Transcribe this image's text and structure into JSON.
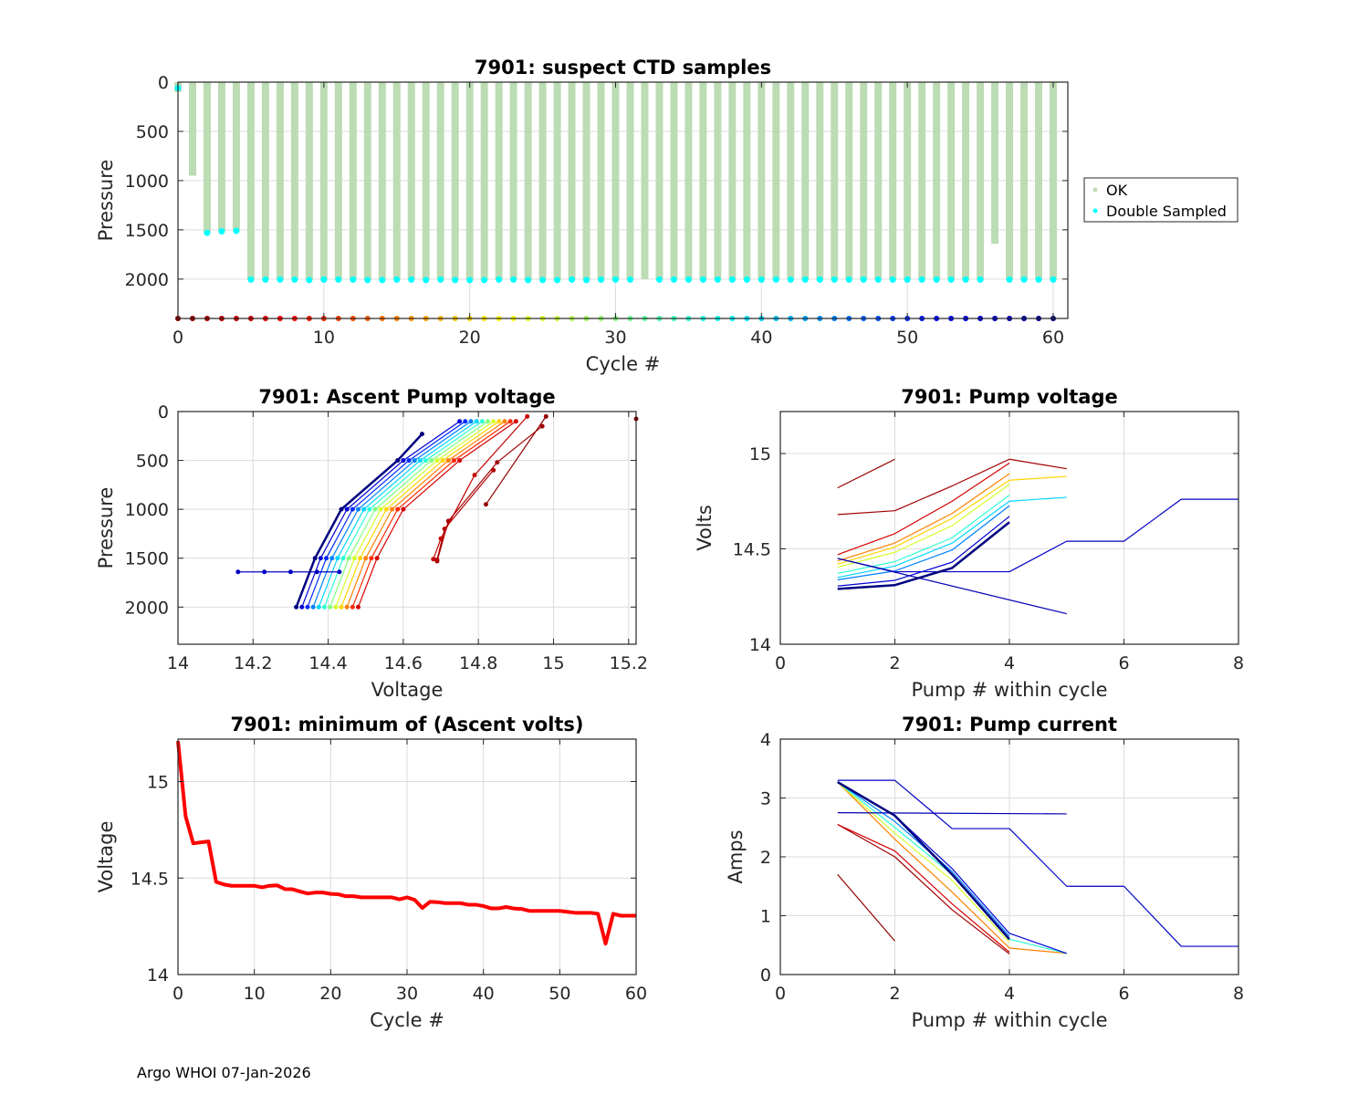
{
  "footer": "Argo WHOI 07-Jan-2026",
  "chart_data": [
    {
      "type": "bar",
      "title": "7901: suspect CTD samples",
      "xlabel": "Cycle #",
      "ylabel": "Pressure",
      "xlim": [
        0,
        61
      ],
      "ylim": [
        0,
        2400
      ],
      "y_reversed": true,
      "grid": true,
      "xticks": [
        0,
        10,
        20,
        30,
        40,
        50,
        60
      ],
      "yticks": [
        0,
        500,
        1000,
        1500,
        2000
      ],
      "legend": {
        "placement": "outside-right",
        "entries": [
          {
            "label": "OK",
            "color": "#bcdcb4"
          },
          {
            "label": "Double Sampled",
            "color": "#00ffff"
          }
        ]
      },
      "cycles_marker_pressure": 2400,
      "profile_max_pressure": [
        100,
        950,
        1530,
        1515,
        1510,
        2005,
        2005,
        2005,
        2005,
        2010,
        2005,
        2005,
        2005,
        2010,
        2010,
        2005,
        2005,
        2010,
        2005,
        2010,
        2010,
        2010,
        2005,
        2005,
        2010,
        2010,
        2010,
        2005,
        2010,
        2005,
        2005,
        2005,
        2000,
        2005,
        2005,
        2005,
        2005,
        2005,
        2005,
        2005,
        2005,
        2005,
        2005,
        2005,
        2005,
        2005,
        2005,
        2005,
        2005,
        2005,
        2005,
        2005,
        2005,
        2005,
        2005,
        2005,
        1640,
        2005,
        2005,
        2005,
        2005
      ],
      "double_sampled_pressure": [
        60,
        null,
        1530,
        1515,
        1510,
        2005,
        2005,
        2005,
        2005,
        2010,
        2005,
        2005,
        2005,
        2010,
        2010,
        2005,
        2005,
        2010,
        2005,
        2010,
        2010,
        2010,
        2005,
        2005,
        2010,
        2010,
        2010,
        2005,
        2010,
        2005,
        2005,
        2005,
        null,
        2005,
        2005,
        2005,
        2005,
        2005,
        2005,
        2005,
        2005,
        2005,
        2005,
        2005,
        2005,
        2005,
        2005,
        2005,
        2005,
        2005,
        2005,
        2005,
        2005,
        2005,
        2005,
        2005,
        null,
        2005,
        2005,
        2005,
        2005
      ]
    },
    {
      "type": "line",
      "title": "7901: Ascent Pump voltage",
      "xlabel": "Voltage",
      "ylabel": "Pressure",
      "xlim": [
        14,
        15.22
      ],
      "ylim": [
        0,
        2380
      ],
      "y_reversed": true,
      "grid": true,
      "xticks": [
        14,
        14.2,
        14.4,
        14.6,
        14.8,
        15,
        15.2
      ],
      "yticks": [
        0,
        500,
        1000,
        1500,
        2000
      ],
      "markers": true,
      "series": [
        {
          "cycle": 0,
          "x": [
            15.22
          ],
          "y": [
            75
          ]
        },
        {
          "cycle": 1,
          "x": [
            14.82,
            14.98
          ],
          "y": [
            950,
            50
          ]
        },
        {
          "cycle": 2,
          "x": [
            14.69,
            14.72,
            14.85,
            14.97
          ],
          "y": [
            1530,
            1120,
            520,
            150
          ]
        },
        {
          "cycle": 3,
          "x": [
            14.69,
            14.71,
            14.84
          ],
          "y": [
            1515,
            1200,
            600
          ]
        },
        {
          "cycle": 4,
          "x": [
            14.68,
            14.7,
            14.79,
            14.93
          ],
          "y": [
            1510,
            1300,
            650,
            50
          ]
        },
        {
          "cycle": 5,
          "x": [
            14.48,
            14.53,
            14.6,
            14.75,
            14.9
          ],
          "y": [
            2000,
            1500,
            1000,
            500,
            100
          ]
        },
        {
          "cycle": 10,
          "x": [
            14.465,
            14.515,
            14.585,
            14.735,
            14.885
          ],
          "y": [
            2000,
            1500,
            1000,
            500,
            100
          ]
        },
        {
          "cycle": 15,
          "x": [
            14.45,
            14.5,
            14.57,
            14.72,
            14.87
          ],
          "y": [
            2000,
            1500,
            1000,
            500,
            100
          ]
        },
        {
          "cycle": 20,
          "x": [
            14.435,
            14.485,
            14.555,
            14.705,
            14.855
          ],
          "y": [
            2000,
            1500,
            1000,
            500,
            100
          ]
        },
        {
          "cycle": 25,
          "x": [
            14.42,
            14.47,
            14.54,
            14.69,
            14.84
          ],
          "y": [
            2000,
            1500,
            1000,
            500,
            100
          ]
        },
        {
          "cycle": 30,
          "x": [
            14.405,
            14.455,
            14.525,
            14.675,
            14.825
          ],
          "y": [
            2000,
            1500,
            1000,
            500,
            100
          ]
        },
        {
          "cycle": 35,
          "x": [
            14.39,
            14.44,
            14.51,
            14.66,
            14.81
          ],
          "y": [
            2000,
            1500,
            1000,
            500,
            100
          ]
        },
        {
          "cycle": 40,
          "x": [
            14.375,
            14.425,
            14.495,
            14.645,
            14.795
          ],
          "y": [
            2000,
            1500,
            1000,
            500,
            100
          ]
        },
        {
          "cycle": 45,
          "x": [
            14.36,
            14.41,
            14.48,
            14.63,
            14.78
          ],
          "y": [
            2000,
            1500,
            1000,
            500,
            100
          ]
        },
        {
          "cycle": 50,
          "x": [
            14.345,
            14.395,
            14.465,
            14.615,
            14.765
          ],
          "y": [
            2000,
            1500,
            1000,
            500,
            100
          ]
        },
        {
          "cycle": 55,
          "x": [
            14.33,
            14.38,
            14.45,
            14.6,
            14.75
          ],
          "y": [
            2000,
            1500,
            1000,
            500,
            100
          ]
        },
        {
          "cycle": 56,
          "x": [
            14.16,
            14.23,
            14.3,
            14.37,
            14.43
          ],
          "y": [
            1640,
            1640,
            1640,
            1640,
            1640
          ]
        },
        {
          "cycle": 60,
          "x": [
            14.315,
            14.365,
            14.435,
            14.585,
            14.65
          ],
          "y": [
            2000,
            1500,
            1000,
            500,
            230
          ]
        }
      ]
    },
    {
      "type": "line",
      "title": "7901: Pump voltage",
      "xlabel": "Pump # within cycle",
      "ylabel": "Volts",
      "xlim": [
        0,
        8
      ],
      "ylim": [
        14,
        15.22
      ],
      "y_reversed": false,
      "grid": true,
      "xticks": [
        0,
        2,
        4,
        6,
        8
      ],
      "yticks": [
        14,
        14.5,
        15
      ],
      "series": [
        {
          "cycle": 1,
          "x": [
            1,
            2
          ],
          "y": [
            14.82,
            14.97
          ]
        },
        {
          "cycle": 2,
          "x": [
            1,
            2,
            3,
            4,
            5
          ],
          "y": [
            14.68,
            14.7,
            14.83,
            14.97,
            14.92
          ]
        },
        {
          "cycle": 5,
          "x": [
            1,
            2,
            3,
            4
          ],
          "y": [
            14.47,
            14.58,
            14.75,
            14.95
          ]
        },
        {
          "cycle": 15,
          "x": [
            1,
            2,
            3,
            4
          ],
          "y": [
            14.437,
            14.531,
            14.686,
            14.894
          ]
        },
        {
          "cycle": 20,
          "x": [
            1,
            2,
            3,
            4,
            5
          ],
          "y": [
            14.42,
            14.51,
            14.66,
            14.86,
            14.88
          ]
        },
        {
          "cycle": 25,
          "x": [
            1,
            2,
            3,
            4
          ],
          "y": [
            14.404,
            14.482,
            14.622,
            14.838
          ]
        },
        {
          "cycle": 35,
          "x": [
            1,
            2,
            3,
            4
          ],
          "y": [
            14.371,
            14.433,
            14.558,
            14.782
          ]
        },
        {
          "cycle": 40,
          "x": [
            1,
            2,
            3,
            4,
            5
          ],
          "y": [
            14.35,
            14.41,
            14.53,
            14.75,
            14.77
          ]
        },
        {
          "cycle": 45,
          "x": [
            1,
            2,
            3,
            4
          ],
          "y": [
            14.338,
            14.384,
            14.494,
            14.726
          ]
        },
        {
          "cycle": 55,
          "x": [
            1,
            2,
            3,
            4
          ],
          "y": [
            14.305,
            14.335,
            14.43,
            14.67
          ]
        },
        {
          "cycle": 56,
          "x": [
            1,
            2,
            3,
            4,
            5,
            6,
            7,
            8
          ],
          "y": [
            14.45,
            14.38,
            14.38,
            14.38,
            14.54,
            14.54,
            14.76,
            14.76
          ]
        },
        {
          "cycle": 57,
          "x": [
            1,
            5
          ],
          "y": [
            14.45,
            14.16
          ]
        },
        {
          "cycle": 60,
          "x": [
            1,
            2,
            3,
            4
          ],
          "y": [
            14.29,
            14.31,
            14.4,
            14.64
          ]
        }
      ]
    },
    {
      "type": "line",
      "title": "7901: minimum of (Ascent volts)",
      "xlabel": "Cycle #",
      "ylabel": "Voltage",
      "xlim": [
        0,
        60
      ],
      "ylim": [
        14,
        15.22
      ],
      "y_reversed": false,
      "grid": true,
      "xticks": [
        0,
        10,
        20,
        30,
        40,
        50,
        60
      ],
      "yticks": [
        14,
        14.5,
        15
      ],
      "series": [
        {
          "color": "#ff0000",
          "x": [
            0,
            1,
            2,
            3,
            4,
            5,
            6,
            7,
            8,
            9,
            10,
            11,
            12,
            13,
            14,
            15,
            16,
            17,
            18,
            19,
            20,
            21,
            22,
            23,
            24,
            25,
            26,
            27,
            28,
            29,
            30,
            31,
            32,
            33,
            34,
            35,
            36,
            37,
            38,
            39,
            40,
            41,
            42,
            43,
            44,
            45,
            46,
            47,
            48,
            49,
            50,
            51,
            52,
            53,
            54,
            55,
            56,
            57,
            58,
            59,
            60
          ],
          "y": [
            15.21,
            14.82,
            14.68,
            14.685,
            14.69,
            14.48,
            14.467,
            14.46,
            14.46,
            14.46,
            14.46,
            14.452,
            14.46,
            14.462,
            14.443,
            14.442,
            14.43,
            14.42,
            14.425,
            14.425,
            14.418,
            14.416,
            14.406,
            14.406,
            14.4,
            14.4,
            14.4,
            14.4,
            14.4,
            14.39,
            14.4,
            14.387,
            14.345,
            14.377,
            14.375,
            14.37,
            14.37,
            14.37,
            14.362,
            14.362,
            14.355,
            14.343,
            14.343,
            14.35,
            14.342,
            14.34,
            14.33,
            14.33,
            14.33,
            14.33,
            14.33,
            14.325,
            14.32,
            14.32,
            14.32,
            14.315,
            14.16,
            14.315,
            14.305,
            14.305,
            14.305
          ]
        }
      ]
    },
    {
      "type": "line",
      "title": "7901: Pump current",
      "xlabel": "Pump # within cycle",
      "ylabel": "Amps",
      "xlim": [
        0,
        8
      ],
      "ylim": [
        0,
        4
      ],
      "y_reversed": false,
      "grid": true,
      "xticks": [
        0,
        2,
        4,
        6,
        8
      ],
      "yticks": [
        0,
        1,
        2,
        3,
        4
      ],
      "series": [
        {
          "cycle": 1,
          "x": [
            1,
            2
          ],
          "y": [
            1.7,
            0.57
          ]
        },
        {
          "cycle": 2,
          "x": [
            1,
            2,
            3,
            4
          ],
          "y": [
            2.55,
            2.0,
            1.1,
            0.35
          ]
        },
        {
          "cycle": 5,
          "x": [
            1,
            2,
            3,
            4
          ],
          "y": [
            2.55,
            2.1,
            1.2,
            0.38
          ]
        },
        {
          "cycle": 15,
          "x": [
            1,
            2,
            3,
            4,
            5
          ],
          "y": [
            3.27,
            2.3,
            1.4,
            0.45,
            0.36
          ]
        },
        {
          "cycle": 25,
          "x": [
            1,
            2,
            3,
            4
          ],
          "y": [
            3.27,
            2.4,
            1.6,
            0.55
          ]
        },
        {
          "cycle": 35,
          "x": [
            1,
            2,
            3,
            4,
            5
          ],
          "y": [
            3.27,
            2.5,
            1.7,
            0.6,
            0.36
          ]
        },
        {
          "cycle": 45,
          "x": [
            1,
            2,
            3,
            4
          ],
          "y": [
            3.27,
            2.6,
            1.75,
            0.65
          ]
        },
        {
          "cycle": 55,
          "x": [
            1,
            2,
            3,
            4,
            5
          ],
          "y": [
            3.27,
            2.7,
            1.8,
            0.7,
            0.36
          ]
        },
        {
          "cycle": 56,
          "x": [
            1,
            2,
            3,
            4,
            5,
            6,
            7,
            8
          ],
          "y": [
            3.3,
            3.3,
            2.48,
            2.48,
            1.5,
            1.5,
            0.48,
            0.48
          ]
        },
        {
          "cycle": 57,
          "x": [
            1,
            5
          ],
          "y": [
            2.75,
            2.73
          ]
        },
        {
          "cycle": 60,
          "x": [
            1,
            2,
            3,
            4
          ],
          "y": [
            3.27,
            2.7,
            1.7,
            0.6
          ]
        }
      ]
    }
  ]
}
